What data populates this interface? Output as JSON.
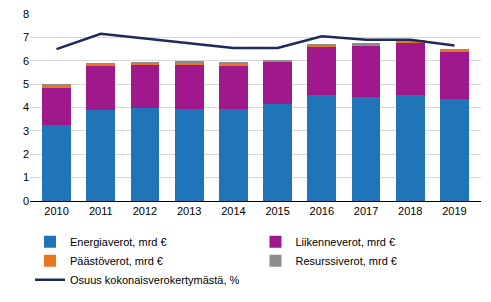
{
  "chart_data": {
    "type": "bar",
    "stacked": true,
    "grid": true,
    "legend": "bottom",
    "categories": [
      "2010",
      "2011",
      "2012",
      "2013",
      "2014",
      "2015",
      "2016",
      "2017",
      "2018",
      "2019"
    ],
    "ylim": [
      0,
      8
    ],
    "yticks": [
      0,
      1,
      2,
      3,
      4,
      5,
      6,
      7,
      8
    ],
    "series": [
      {
        "name": "Energiaverot, mrd €",
        "color": "#1f75b8",
        "values": [
          3.25,
          3.9,
          4.0,
          3.95,
          3.95,
          4.15,
          4.55,
          4.45,
          4.55,
          4.35
        ]
      },
      {
        "name": "Liikenneverot, mrd €",
        "color": "#a0198c",
        "values": [
          1.6,
          1.9,
          1.8,
          1.85,
          1.85,
          1.8,
          2.05,
          2.2,
          2.25,
          2.05
        ]
      },
      {
        "name": "Päästöverot, mrd €",
        "color": "#e87722",
        "values": [
          0.1,
          0.07,
          0.1,
          0.12,
          0.08,
          0.04,
          0.05,
          0.06,
          0.05,
          0.06
        ]
      },
      {
        "name": "Resurssiverot, mrd €",
        "color": "#8c8c8c",
        "values": [
          0.03,
          0.03,
          0.03,
          0.03,
          0.03,
          0.03,
          0.03,
          0.03,
          0.03,
          0.03
        ]
      },
      {
        "name": "Osuus kokonaisverokertymästä, %",
        "color": "#1d2a5a",
        "type": "line",
        "values": [
          6.5,
          7.15,
          6.95,
          6.75,
          6.55,
          6.55,
          7.05,
          6.9,
          6.9,
          6.65
        ]
      }
    ]
  }
}
